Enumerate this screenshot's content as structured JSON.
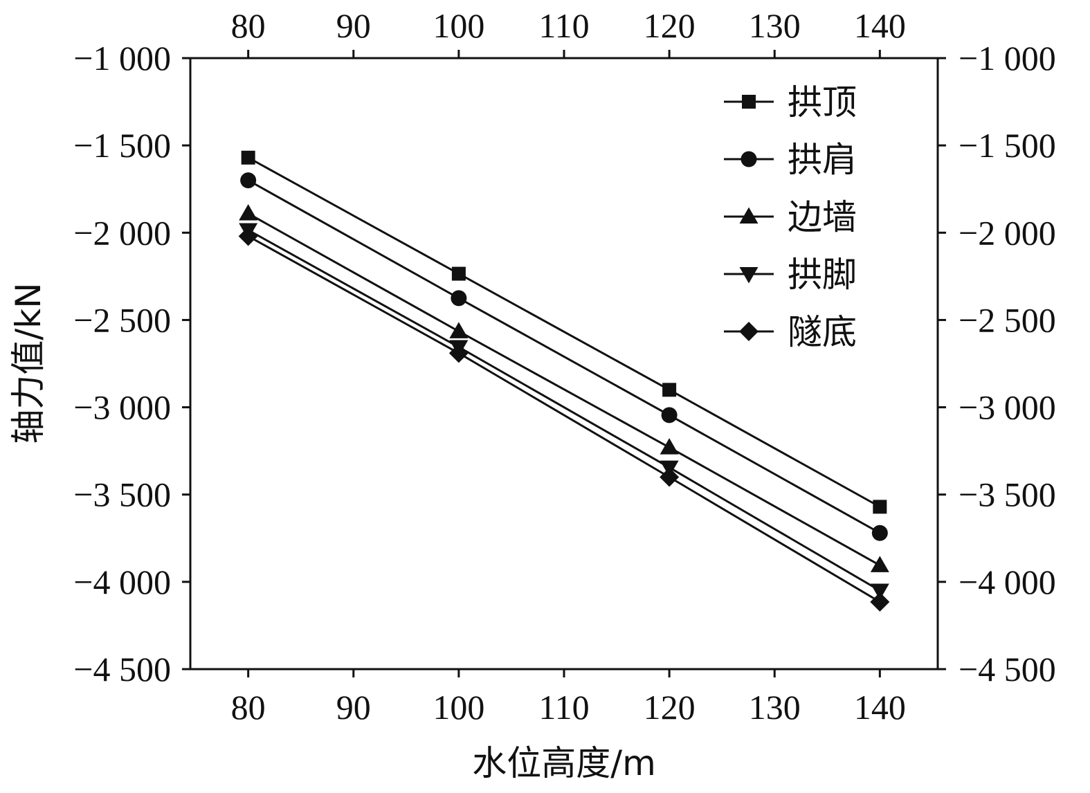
{
  "chart_data": {
    "type": "line",
    "xlabel": "水位高度/m",
    "ylabel": "轴力值/kN",
    "x": [
      80,
      100,
      120,
      140
    ],
    "xlim": [
      74.5,
      145.5
    ],
    "xticks": [
      80,
      90,
      100,
      110,
      120,
      130,
      140
    ],
    "xtick_labels": [
      "80",
      "90",
      "100",
      "110",
      "120",
      "130",
      "140"
    ],
    "ylim": [
      -4500,
      -1000
    ],
    "yticks": [
      -1000,
      -1500,
      -2000,
      -2500,
      -3000,
      -3500,
      -4000,
      -4500
    ],
    "ytick_labels": [
      "−1 000",
      "−1 500",
      "−2 000",
      "−2 500",
      "−3 000",
      "−3 500",
      "−4 000",
      "−4 500"
    ],
    "mirror_axes": true,
    "grid": false,
    "legend_position": "top-right",
    "series": [
      {
        "name": "拱顶",
        "marker": "square",
        "values": [
          -1570,
          -2235,
          -2900,
          -3570
        ]
      },
      {
        "name": "拱肩",
        "marker": "circle",
        "values": [
          -1700,
          -2375,
          -3045,
          -3720
        ]
      },
      {
        "name": "边墙",
        "marker": "triangle-up",
        "values": [
          -1890,
          -2565,
          -3230,
          -3905
        ]
      },
      {
        "name": "拱脚",
        "marker": "triangle-down",
        "values": [
          -1985,
          -2655,
          -3345,
          -4050
        ]
      },
      {
        "name": "隧底",
        "marker": "diamond",
        "values": [
          -2020,
          -2690,
          -3400,
          -4115
        ]
      }
    ],
    "line_color": "#111111"
  }
}
